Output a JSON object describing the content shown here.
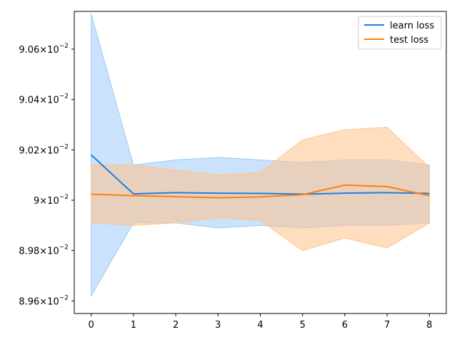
{
  "chart_data": {
    "type": "line",
    "x": [
      0,
      1,
      2,
      3,
      4,
      5,
      6,
      7,
      8
    ],
    "xlim": [
      -0.4,
      8.4
    ],
    "ylim": [
      0.08955,
      0.09075
    ],
    "xticks": [
      0,
      1,
      2,
      3,
      4,
      5,
      6,
      7,
      8
    ],
    "xtick_labels": [
      "0",
      "1",
      "2",
      "3",
      "4",
      "5",
      "6",
      "7",
      "8"
    ],
    "yticks": [
      {
        "value": 0.0896,
        "mant": "8.96",
        "exp": "−2"
      },
      {
        "value": 0.0898,
        "mant": "8.98",
        "exp": "−2"
      },
      {
        "value": 0.09,
        "mant": "9",
        "exp": "−2"
      },
      {
        "value": 0.0902,
        "mant": "9.02",
        "exp": "−2"
      },
      {
        "value": 0.0904,
        "mant": "9.04",
        "exp": "−2"
      },
      {
        "value": 0.0906,
        "mant": "9.06",
        "exp": "−2"
      }
    ],
    "tick_times": "×",
    "tick_base": "10",
    "grid": false,
    "legend_position": "top-right",
    "series": [
      {
        "name": "learn loss",
        "color": "#1f7fe0",
        "band_color": "#9ecbf7",
        "values": [
          0.09018,
          0.090025,
          0.09003,
          0.090028,
          0.090027,
          0.090024,
          0.090028,
          0.09003,
          0.090027
        ],
        "lower": [
          0.08962,
          0.08991,
          0.08991,
          0.08989,
          0.0899,
          0.08989,
          0.0899,
          0.0899,
          0.08991
        ],
        "upper": [
          0.09074,
          0.09014,
          0.09016,
          0.09017,
          0.09016,
          0.09015,
          0.09016,
          0.09016,
          0.09014
        ]
      },
      {
        "name": "test loss",
        "color": "#ff7f0e",
        "band_color": "#ffc38c",
        "values": [
          0.090024,
          0.090018,
          0.090014,
          0.09001,
          0.090013,
          0.090022,
          0.09006,
          0.090054,
          0.090018
        ],
        "lower": [
          0.08991,
          0.0899,
          0.08991,
          0.08993,
          0.08992,
          0.0898,
          0.08985,
          0.08981,
          0.08991
        ],
        "upper": [
          0.09014,
          0.09014,
          0.09012,
          0.0901,
          0.09011,
          0.09024,
          0.09028,
          0.09029,
          0.09013
        ]
      }
    ]
  }
}
